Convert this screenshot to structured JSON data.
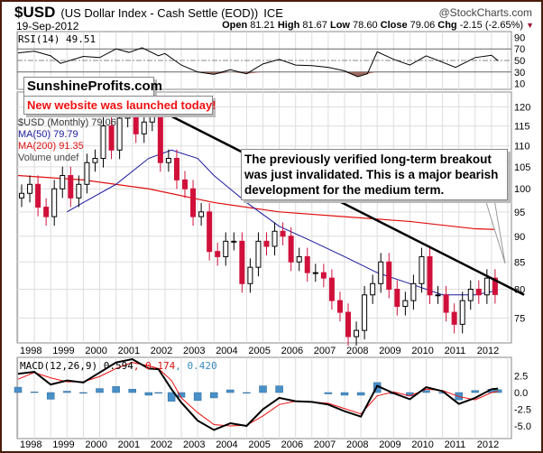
{
  "header": {
    "symbol": "$USD",
    "name": "(US Dollar Index - Cash Settle (EOD))",
    "exchange": "ICE",
    "date": "19-Sep-2012",
    "credit": "@StockCharts.com",
    "open_label": "Open",
    "open": "81.21",
    "high_label": "High",
    "high": "81.67",
    "low_label": "Low",
    "low": "78.60",
    "close_label": "Close",
    "close": "79.06",
    "chg_label": "Chg",
    "chg": "-2.15 (-2.65%)"
  },
  "colors": {
    "up": "#000000",
    "down": "#d0103a",
    "ma50": "#1a1a9c",
    "ma200": "#e01010",
    "macd_hist": "#4a90c8",
    "rsi_fill": "#9a6a60"
  },
  "annotations": {
    "brand": "SunshineProfits.com",
    "launch": "New website was launched today!",
    "note": "The previously verified long-term breakout was just invalidated. This is a major bearish development for the medium term."
  },
  "legend": {
    "price": "$USD (Monthly) 79.06",
    "ma50": "MA(50) 79.79",
    "ma200": "MA(200) 91.35",
    "volume": "Volume undef"
  },
  "rsi_label": "RSI(14) 49.51",
  "macd_label": {
    "name": "MACD(12,26,9)",
    "macd": "0.594",
    "signal": ", 0.174",
    "hist": ", 0.420"
  },
  "chart_data": [
    {
      "type": "candlestick",
      "title": "$USD (Monthly)",
      "x_start": 1998.0,
      "x_step": 0.25,
      "closes": [
        99,
        101,
        96,
        94,
        100,
        103,
        98,
        101,
        106,
        107,
        115,
        109,
        117,
        120,
        113,
        116,
        119,
        106,
        107,
        102,
        100,
        94,
        95,
        87,
        86,
        89,
        89,
        81,
        84,
        89,
        88,
        91,
        90,
        85,
        86,
        83,
        83,
        82,
        78,
        76,
        72,
        73,
        79,
        81,
        85,
        80,
        77,
        78,
        81,
        86,
        79,
        79,
        76,
        74,
        78,
        80,
        79,
        82,
        79.06
      ],
      "ma50": {
        "x": [
          1999.5,
          2000,
          2001,
          2002,
          2002.7,
          2003.5,
          2004,
          2005,
          2006,
          2007,
          2008,
          2009,
          2010,
          2011,
          2012,
          2012.7
        ],
        "y": [
          95,
          97,
          101,
          107,
          109,
          107,
          103,
          97,
          92,
          89,
          86,
          83,
          81,
          79,
          79,
          79.79
        ]
      },
      "ma200": {
        "x": [
          1998,
          2000,
          2002,
          2004,
          2006,
          2008,
          2010,
          2012,
          2012.7
        ],
        "y": [
          103,
          102,
          100,
          97,
          95,
          94,
          93,
          91.5,
          91.35
        ]
      },
      "trendline": {
        "x": [
          2001.9,
          2013.5
        ],
        "y": [
          121,
          79
        ]
      },
      "yticks": [
        75,
        80,
        85,
        90,
        95,
        100,
        105,
        110,
        115,
        120
      ],
      "ylim": [
        71,
        124
      ],
      "xticks": [
        "1998",
        "1999",
        "2000",
        "2001",
        "2002",
        "2003",
        "2004",
        "2005",
        "2006",
        "2007",
        "2008",
        "2009",
        "2010",
        "2011",
        "2012"
      ]
    },
    {
      "type": "line",
      "title": "RSI(14)",
      "x": [
        1998,
        1998.5,
        1999,
        1999.3,
        2000,
        2000.5,
        2001,
        2001.4,
        2001.8,
        2002.3,
        2002.5,
        2003,
        2003.5,
        2004,
        2004.5,
        2005,
        2005.5,
        2006,
        2006.5,
        2007,
        2007.5,
        2008,
        2008.4,
        2008.7,
        2009,
        2009.5,
        2010,
        2010.5,
        2011,
        2011.4,
        2012,
        2012.5,
        2012.7
      ],
      "y": [
        63,
        66,
        58,
        45,
        57,
        55,
        70,
        64,
        72,
        58,
        62,
        42,
        30,
        26,
        34,
        27,
        44,
        52,
        42,
        41,
        38,
        32,
        22,
        27,
        65,
        52,
        42,
        58,
        47,
        38,
        55,
        59,
        49.51
      ],
      "yticks": [
        10,
        30,
        50,
        70,
        90
      ],
      "ylim": [
        0,
        100
      ]
    },
    {
      "type": "macd",
      "title": "MACD(12,26,9)",
      "x": [
        1998,
        1998.5,
        1999,
        1999.5,
        2000,
        2000.5,
        2001,
        2001.5,
        2002,
        2002.3,
        2002.7,
        2003,
        2003.5,
        2004,
        2004.5,
        2005,
        2005.5,
        2006,
        2006.5,
        2007,
        2007.5,
        2008,
        2008.5,
        2009,
        2009.5,
        2010,
        2010.5,
        2011,
        2011.5,
        2012,
        2012.5,
        2012.7
      ],
      "macd": [
        2.8,
        3.1,
        1.2,
        1.8,
        1.5,
        3.0,
        4.5,
        5.0,
        3.6,
        3.5,
        0.5,
        -1.5,
        -4.2,
        -5.6,
        -4.6,
        -5.0,
        -2.5,
        -0.8,
        -1.3,
        -1.4,
        -1.8,
        -2.8,
        -3.6,
        1.0,
        -0.1,
        -1.0,
        0.8,
        0.2,
        -1.7,
        -0.8,
        0.5,
        0.594
      ],
      "signal": [
        2.0,
        3.0,
        2.2,
        1.6,
        1.6,
        2.4,
        3.6,
        4.5,
        4.0,
        3.6,
        1.8,
        -0.8,
        -3.0,
        -4.8,
        -5.0,
        -4.9,
        -3.5,
        -1.8,
        -1.3,
        -1.4,
        -1.6,
        -2.4,
        -3.2,
        -0.5,
        0.1,
        -0.5,
        0.5,
        0.3,
        -0.6,
        -1.1,
        0.0,
        0.174
      ],
      "yticks": [
        -5,
        -2.5,
        0,
        2.5
      ],
      "ylim": [
        -6.5,
        4.5
      ]
    }
  ]
}
